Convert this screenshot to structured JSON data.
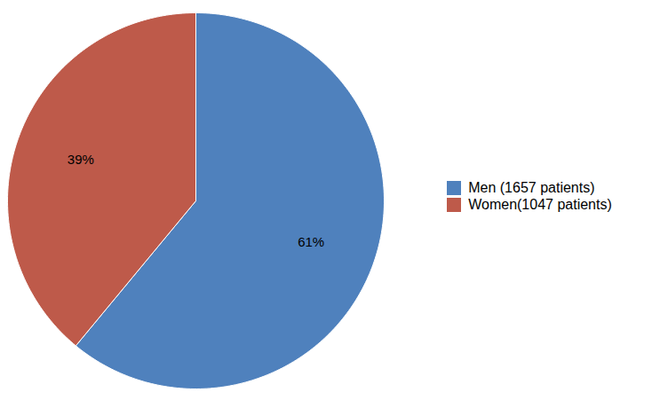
{
  "chart_data": {
    "type": "pie",
    "categories": [
      "Men (1657 patients)",
      "Women(1047 patients)"
    ],
    "values": [
      61,
      39
    ],
    "value_labels": [
      "61%",
      "39%"
    ],
    "colors": [
      "#4f81bd",
      "#be5a4a"
    ],
    "data_labels": true,
    "legend": "right"
  }
}
